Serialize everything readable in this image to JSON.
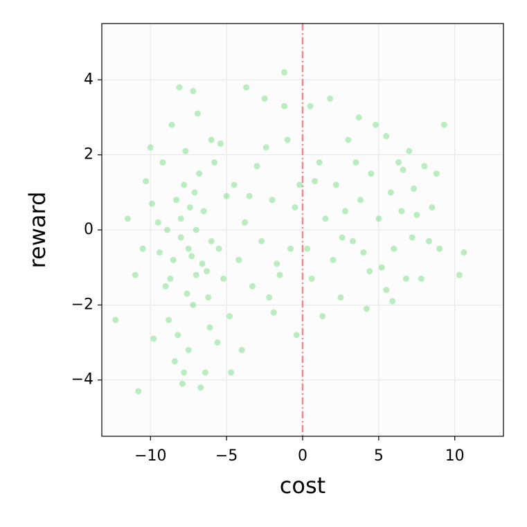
{
  "chart_data": {
    "type": "scatter",
    "xlabel": "cost",
    "ylabel": "reward",
    "x": [
      -7.5,
      -8,
      -7,
      -8.5,
      -6.5,
      -7.8,
      -9,
      -6,
      -7.2,
      -8.3,
      -9.5,
      -6.8,
      -7.6,
      -8.8,
      -6.2,
      -5.5,
      -7,
      -8,
      -7.4,
      -6.6,
      -9.2,
      -10,
      -8.6,
      -7.2,
      -8.1,
      -6.9,
      -7.5,
      -8.4,
      -6.4,
      -7.9,
      -10.8,
      -12.3,
      -11.5,
      -11,
      -10.5,
      -9.8,
      -5.8,
      -5.2,
      -5,
      -6,
      -8.7,
      -7.3,
      -6.1,
      -8.9,
      -9.9,
      -7.7,
      -6.3,
      -7.1,
      -8.2,
      -5.6,
      -6.7,
      -7.8,
      -9.4,
      -10.3,
      -5.4,
      -4.8,
      -4.5,
      -4.2,
      -3.8,
      -4.7,
      -3.7,
      -3,
      -2.5,
      -3.3,
      -2.7,
      -2,
      -1.5,
      -1.2,
      -1,
      -0.8,
      -0.5,
      -1.9,
      -0.4,
      -0.2,
      -1.7,
      -2.4,
      -3.5,
      -4,
      -2.2,
      -1.2,
      0.5,
      0.3,
      0.8,
      0.6,
      1.3,
      1.8,
      1.5,
      2,
      2.2,
      2.5,
      2.8,
      3,
      3.3,
      3.5,
      3.8,
      4,
      4.2,
      4.5,
      4.8,
      5,
      5.2,
      5.5,
      5.8,
      6,
      6.3,
      6.5,
      6.8,
      7,
      7.3,
      7.5,
      7.8,
      8,
      8.3,
      8.5,
      8.8,
      9,
      9.3,
      10.3,
      10.6,
      3.7,
      5.5,
      2.6,
      1.1,
      4.4,
      6.6,
      5.9,
      7.2
    ],
    "values": [
      -0.5,
      0.3,
      -1.2,
      -0.8,
      0.5,
      1.2,
      -1.5,
      -0.3,
      -2,
      0.8,
      0.2,
      1.5,
      -1.7,
      -2.4,
      -1.8,
      -0.5,
      0,
      -0.2,
      0.6,
      -0.9,
      1.8,
      2.2,
      2.8,
      3.7,
      3.8,
      3.1,
      -3.2,
      -3.5,
      -3.8,
      -4.1,
      -4.3,
      -2.4,
      0.3,
      -1.2,
      -0.5,
      -2.9,
      1.8,
      -1.3,
      0.9,
      2.4,
      -1.3,
      -0.7,
      -2.6,
      0,
      0.7,
      2.1,
      -1.1,
      1,
      -2.8,
      -3,
      -4.2,
      -3.8,
      -0.6,
      1.3,
      2.3,
      -2.3,
      1.2,
      -0.8,
      0.2,
      -3.8,
      3.8,
      1.7,
      3.5,
      -1.5,
      -0.3,
      0.8,
      -1.2,
      4.2,
      2.4,
      -0.5,
      0.6,
      -2.2,
      -2.8,
      1.2,
      -0.9,
      2.2,
      0.9,
      -3.2,
      -1.8,
      3.3,
      3.3,
      -0.5,
      1.3,
      -1.3,
      -2.3,
      3.5,
      0.3,
      -0.8,
      1.2,
      -1.8,
      0.5,
      2.4,
      -0.3,
      1.8,
      0.8,
      -0.6,
      -2.1,
      1.5,
      2.8,
      0.3,
      -1,
      -1.6,
      1,
      -0.5,
      1.8,
      0.5,
      -1.3,
      2.1,
      1.1,
      0.4,
      -1.3,
      1.7,
      -0.3,
      0.6,
      1.5,
      -0.5,
      2.8,
      -1.2,
      -0.6,
      3,
      2.5,
      -0.2,
      1.8,
      -1.1,
      1.6,
      -1.9,
      -0.2
    ],
    "color": "#4cd35a",
    "vline": 0,
    "vline_color": "#e8888a",
    "xlim": [
      -13.2,
      13.2
    ],
    "ylim": [
      -5.5,
      5.5
    ],
    "xticks": [
      {
        "value": -10,
        "label": "−10"
      },
      {
        "value": -5,
        "label": "−5"
      },
      0,
      5,
      10
    ],
    "yticks": [
      {
        "value": -4,
        "label": "−4"
      },
      {
        "value": -2,
        "label": "−2"
      },
      0,
      2,
      4
    ],
    "grid": true
  }
}
